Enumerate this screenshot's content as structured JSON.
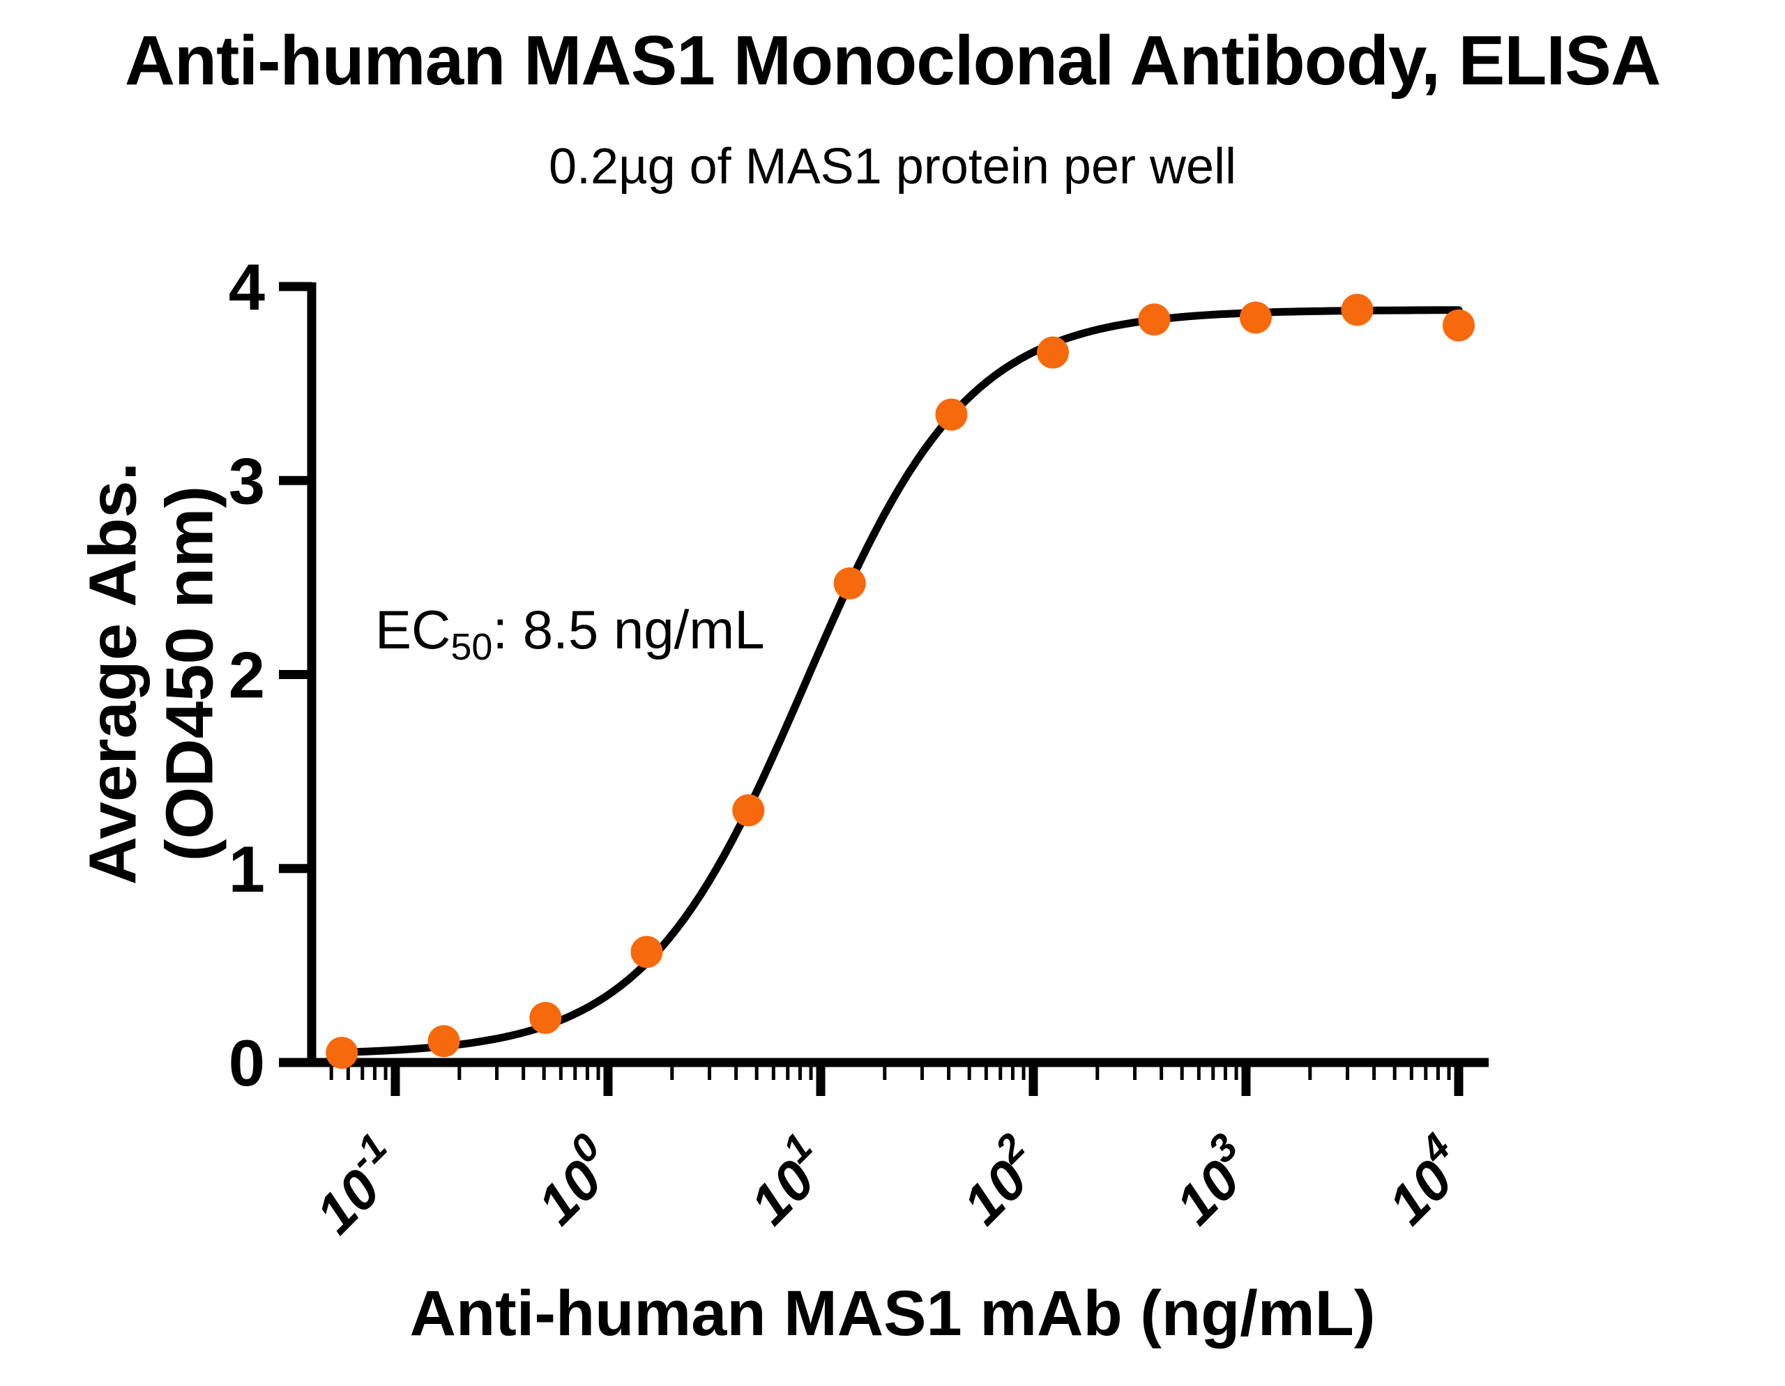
{
  "page": {
    "background_color": "#FFFFFF",
    "text_color": "#000000"
  },
  "chart_data": {
    "type": "scatter",
    "title": "Anti-human MAS1 Monoclonal Antibody, ELISA",
    "subtitle": "0.2µg of MAS1 protein per well",
    "xlabel": "Anti-human MAS1 mAb (ng/mL)",
    "ylabel": [
      "Average Abs.",
      "(OD450 nm)"
    ],
    "annotation": {
      "base": "EC",
      "sub": "50",
      "rest": ": 8.5 ng/mL"
    },
    "x_scale": "log10",
    "xlim": [
      0.1,
      10000
    ],
    "ylim": [
      0,
      4
    ],
    "grid": false,
    "legend": false,
    "y_ticks": [
      0,
      1,
      2,
      3,
      4
    ],
    "x_ticks": [
      {
        "base": "10",
        "exp": "-1",
        "value": 0.1
      },
      {
        "base": "10",
        "exp": "0",
        "value": 1
      },
      {
        "base": "10",
        "exp": "1",
        "value": 10
      },
      {
        "base": "10",
        "exp": "2",
        "value": 100
      },
      {
        "base": "10",
        "exp": "3",
        "value": 1000
      },
      {
        "base": "10",
        "exp": "4",
        "value": 10000
      }
    ],
    "series": [
      {
        "name": "anti-human MAS1 mAb",
        "marker_color": "#F7690D",
        "line_color": "#000000",
        "points": [
          [
            0.056,
            0.05
          ],
          [
            0.169,
            0.11
          ],
          [
            0.508,
            0.23
          ],
          [
            1.52,
            0.57
          ],
          [
            4.57,
            1.3
          ],
          [
            13.7,
            2.47
          ],
          [
            41.2,
            3.34
          ],
          [
            123.5,
            3.66
          ],
          [
            370.4,
            3.83
          ],
          [
            1111,
            3.84
          ],
          [
            3333,
            3.88
          ],
          [
            10000,
            3.8
          ]
        ]
      }
    ],
    "fit_curve": {
      "model": "4PL",
      "bottom": 0.04,
      "top": 3.88,
      "ec50": 8.5,
      "hill": 1.14
    }
  }
}
